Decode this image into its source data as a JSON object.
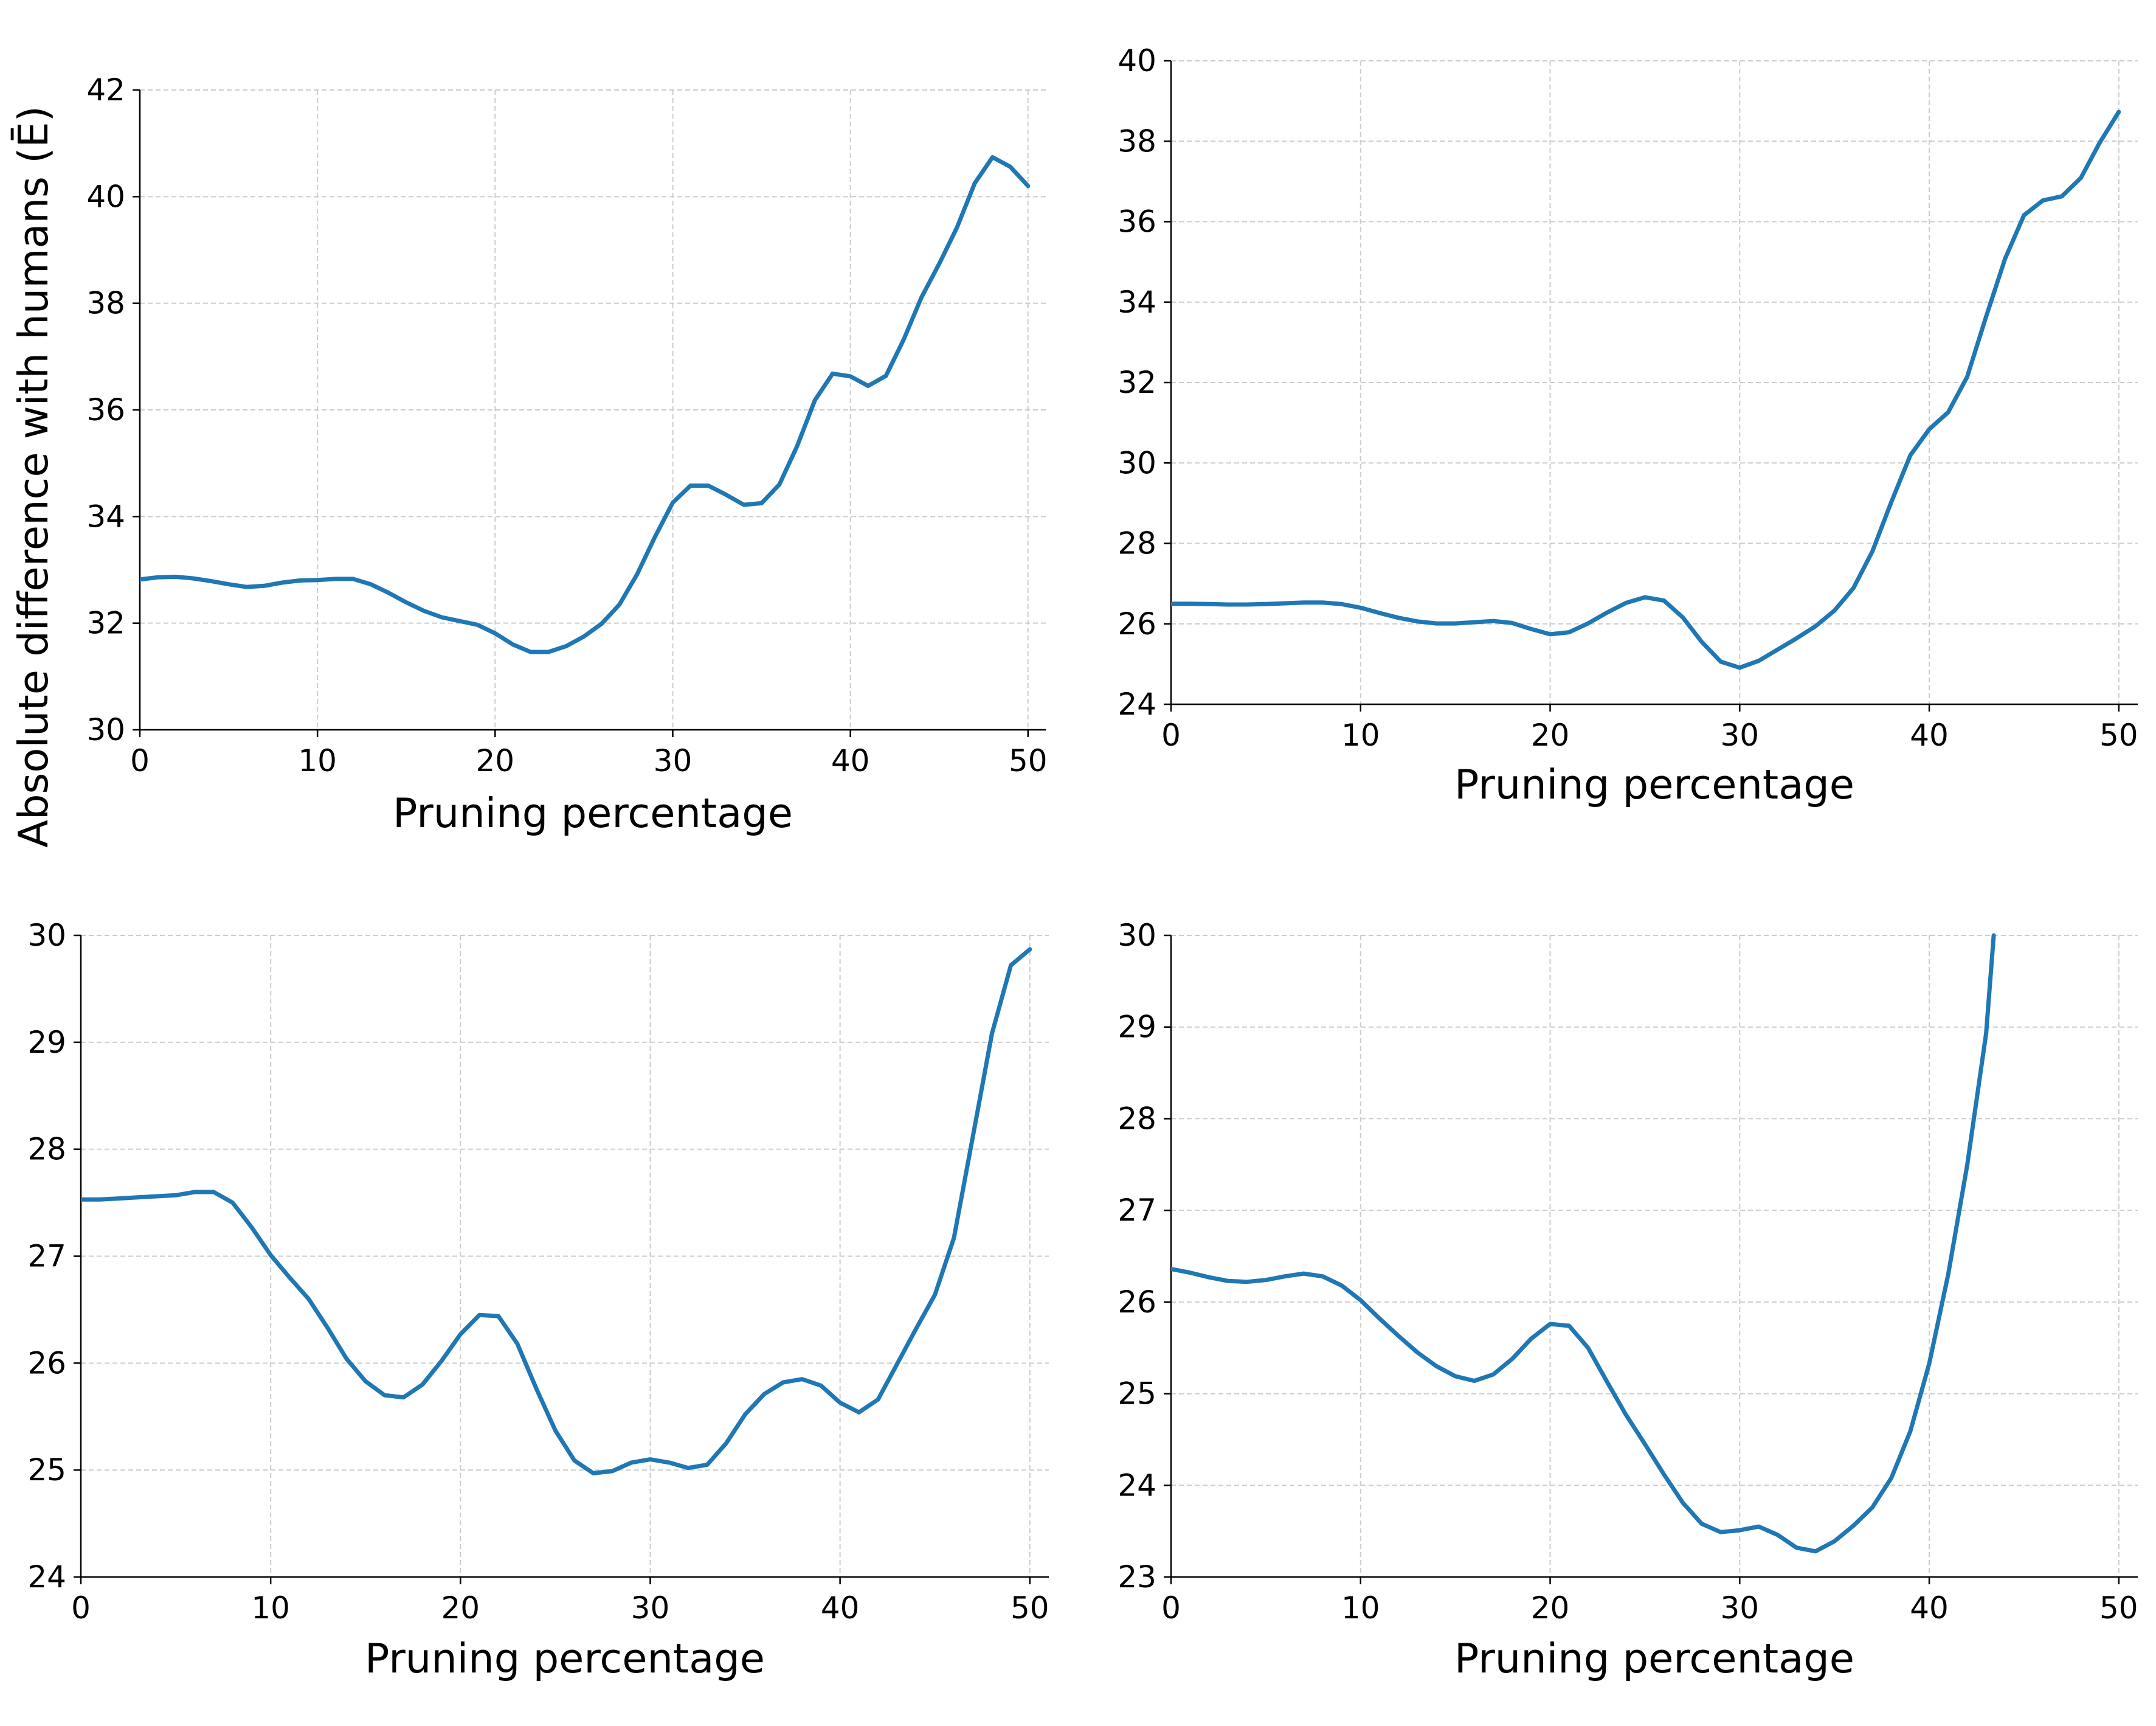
{
  "colors": {
    "series": "#1f77b4",
    "grid": "#cccccc",
    "axis": "#000000"
  },
  "chart_data": [
    {
      "type": "line",
      "xlabel": "Pruning percentage",
      "ylabel": "Absolute difference with humans (Ē)",
      "xlim": [
        0,
        51
      ],
      "ylim": [
        30,
        42
      ],
      "xticks": [
        0,
        10,
        20,
        30,
        40,
        50
      ],
      "yticks": [
        30,
        32,
        34,
        36,
        38,
        40,
        42
      ],
      "grid": true,
      "series": [
        {
          "x": [
            0,
            1,
            2,
            3,
            4,
            5,
            6,
            7,
            8,
            9,
            10,
            11,
            12,
            13,
            14,
            15,
            16,
            17,
            18,
            19,
            20,
            21,
            22,
            23,
            24,
            25,
            26,
            27,
            28,
            29,
            30,
            31,
            32,
            33,
            34,
            35,
            36,
            37,
            38,
            39,
            40,
            41,
            42,
            43,
            44,
            45,
            46,
            47,
            48,
            49,
            50
          ],
          "values": [
            32.82,
            32.86,
            32.87,
            32.84,
            32.79,
            32.73,
            32.68,
            32.7,
            32.76,
            32.8,
            32.81,
            32.83,
            32.83,
            32.73,
            32.57,
            32.39,
            32.23,
            32.11,
            32.04,
            31.97,
            31.81,
            31.6,
            31.46,
            31.46,
            31.57,
            31.75,
            31.99,
            32.35,
            32.92,
            33.62,
            34.26,
            34.58,
            34.58,
            34.41,
            34.22,
            34.25,
            34.6,
            35.32,
            36.18,
            36.68,
            36.63,
            36.45,
            36.64,
            37.32,
            38.11,
            38.74,
            39.42,
            40.25,
            40.74,
            40.56,
            40.2
          ]
        }
      ]
    },
    {
      "type": "line",
      "xlabel": "Pruning percentage",
      "ylabel": "",
      "xlim": [
        0,
        51
      ],
      "ylim": [
        24,
        40
      ],
      "xticks": [
        0,
        10,
        20,
        30,
        40,
        50
      ],
      "yticks": [
        24,
        26,
        28,
        30,
        32,
        34,
        36,
        38,
        40
      ],
      "grid": true,
      "series": [
        {
          "x": [
            0,
            1,
            2,
            3,
            4,
            5,
            6,
            7,
            8,
            9,
            10,
            11,
            12,
            13,
            14,
            15,
            16,
            17,
            18,
            19,
            20,
            21,
            22,
            23,
            24,
            25,
            26,
            27,
            28,
            29,
            30,
            31,
            32,
            33,
            34,
            35,
            36,
            37,
            38,
            39,
            40,
            41,
            42,
            43,
            44,
            45,
            46,
            47,
            48,
            49,
            50
          ],
          "values": [
            26.5,
            26.5,
            26.49,
            26.48,
            26.48,
            26.49,
            26.51,
            26.53,
            26.53,
            26.49,
            26.4,
            26.27,
            26.15,
            26.06,
            26.01,
            26.01,
            26.04,
            26.07,
            26.02,
            25.87,
            25.74,
            25.79,
            26.01,
            26.28,
            26.52,
            26.66,
            26.58,
            26.16,
            25.55,
            25.06,
            24.91,
            25.08,
            25.36,
            25.64,
            25.94,
            26.33,
            26.89,
            27.8,
            29.03,
            30.19,
            30.84,
            31.26,
            32.14,
            33.64,
            35.08,
            36.16,
            36.53,
            36.63,
            37.09,
            37.97,
            38.73
          ]
        }
      ]
    },
    {
      "type": "line",
      "xlabel": "Pruning percentage",
      "ylabel": "",
      "xlim": [
        0,
        51
      ],
      "ylim": [
        24,
        30
      ],
      "xticks": [
        0,
        10,
        20,
        30,
        40,
        50
      ],
      "yticks": [
        24,
        25,
        26,
        27,
        28,
        29,
        30
      ],
      "grid": true,
      "series": [
        {
          "x": [
            0,
            1,
            2,
            3,
            4,
            5,
            6,
            7,
            8,
            9,
            10,
            11,
            12,
            13,
            14,
            15,
            16,
            17,
            18,
            19,
            20,
            21,
            22,
            23,
            24,
            25,
            26,
            27,
            28,
            29,
            30,
            31,
            32,
            33,
            34,
            35,
            36,
            37,
            38,
            39,
            40,
            41,
            42,
            43,
            44,
            45,
            46,
            47,
            48,
            49,
            50
          ],
          "values": [
            27.53,
            27.53,
            27.54,
            27.55,
            27.56,
            27.57,
            27.6,
            27.6,
            27.5,
            27.27,
            27.01,
            26.8,
            26.6,
            26.33,
            26.04,
            25.83,
            25.7,
            25.68,
            25.8,
            26.02,
            26.27,
            26.45,
            26.44,
            26.18,
            25.76,
            25.37,
            25.09,
            24.97,
            24.99,
            25.07,
            25.1,
            25.07,
            25.02,
            25.05,
            25.25,
            25.52,
            25.71,
            25.82,
            25.85,
            25.79,
            25.63,
            25.54,
            25.66,
            25.99,
            26.32,
            26.64,
            27.17,
            28.12,
            29.08,
            29.72,
            29.87
          ]
        }
      ]
    },
    {
      "type": "line",
      "xlabel": "Pruning percentage",
      "ylabel": "",
      "xlim": [
        0,
        51
      ],
      "ylim": [
        23,
        30
      ],
      "xticks": [
        0,
        10,
        20,
        30,
        40,
        50
      ],
      "yticks": [
        23,
        24,
        25,
        26,
        27,
        28,
        29,
        30
      ],
      "grid": true,
      "series": [
        {
          "x": [
            0,
            1,
            2,
            3,
            4,
            5,
            6,
            7,
            8,
            9,
            10,
            11,
            12,
            13,
            14,
            15,
            16,
            17,
            18,
            19,
            20,
            21,
            22,
            23,
            24,
            25,
            26,
            27,
            28,
            29,
            30,
            31,
            32,
            33,
            34,
            35,
            36,
            37,
            38,
            39,
            40,
            41,
            42,
            43,
            43.4
          ],
          "values": [
            26.36,
            26.32,
            26.27,
            26.23,
            26.22,
            26.24,
            26.28,
            26.31,
            26.28,
            26.18,
            26.02,
            25.82,
            25.63,
            25.45,
            25.3,
            25.19,
            25.14,
            25.21,
            25.38,
            25.6,
            25.76,
            25.74,
            25.5,
            25.13,
            24.77,
            24.45,
            24.12,
            23.81,
            23.58,
            23.49,
            23.51,
            23.55,
            23.46,
            23.32,
            23.28,
            23.39,
            23.56,
            23.76,
            24.08,
            24.59,
            25.33,
            26.3,
            27.49,
            28.93,
            30.0
          ]
        }
      ]
    }
  ]
}
